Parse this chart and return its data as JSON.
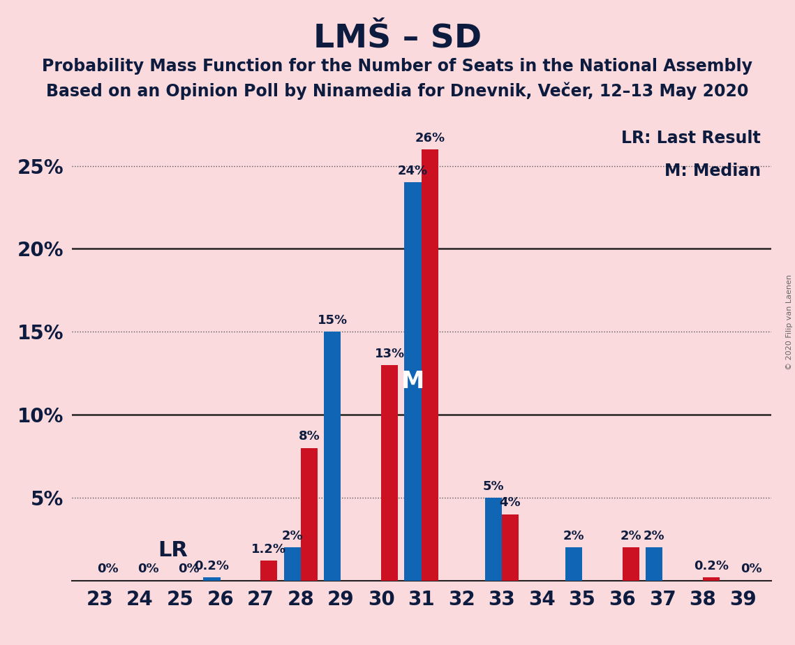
{
  "title": "LMŠ – SD",
  "subtitle1": "Probability Mass Function for the Number of Seats in the National Assembly",
  "subtitle2": "Based on an Opinion Poll by Ninamedia for Dnevnik, Večer, 12–13 May 2020",
  "copyright": "© 2020 Filip van Laenen",
  "seats": [
    23,
    24,
    25,
    26,
    27,
    28,
    29,
    30,
    31,
    32,
    33,
    34,
    35,
    36,
    37,
    38,
    39
  ],
  "blue_values": [
    0.0,
    0.0,
    0.0,
    0.2,
    0.0,
    2.0,
    15.0,
    0.0,
    24.0,
    0.0,
    5.0,
    0.0,
    2.0,
    0.0,
    2.0,
    0.0,
    0.0
  ],
  "red_values": [
    0.0,
    0.0,
    0.0,
    0.0,
    1.2,
    8.0,
    0.0,
    13.0,
    26.0,
    0.0,
    4.0,
    0.0,
    0.0,
    2.0,
    0.0,
    0.2,
    0.0
  ],
  "blue_labels": [
    "",
    "",
    "",
    "0.2%",
    "",
    "2%",
    "15%",
    "",
    "24%",
    "",
    "5%",
    "",
    "2%",
    "",
    "2%",
    "",
    ""
  ],
  "red_labels": [
    "0%",
    "0%",
    "0%",
    "",
    "1.2%",
    "8%",
    "",
    "13%",
    "26%",
    "",
    "4%",
    "",
    "",
    "2%",
    "",
    "0.2%",
    "0%"
  ],
  "show_zero_blue": [
    false,
    false,
    false,
    false,
    false,
    false,
    false,
    false,
    false,
    false,
    false,
    false,
    false,
    false,
    false,
    false,
    false
  ],
  "blue_color": "#1065b5",
  "red_color": "#cc1122",
  "background_color": "#fadadd",
  "lr_label": "LR",
  "lr_seat_idx": 3,
  "median_seat_idx": 8,
  "median_label": "M",
  "legend_lr": "LR: Last Result",
  "legend_m": "M: Median",
  "dotted_yticks": [
    5.0,
    15.0,
    25.0
  ],
  "solid_yticks": [
    10.0,
    20.0
  ],
  "ytick_positions": [
    0,
    5,
    10,
    15,
    20,
    25
  ],
  "ytick_labels": [
    "",
    "5%",
    "10%",
    "15%",
    "20%",
    "25%"
  ],
  "ylim": [
    0,
    28
  ],
  "bar_width": 0.42
}
